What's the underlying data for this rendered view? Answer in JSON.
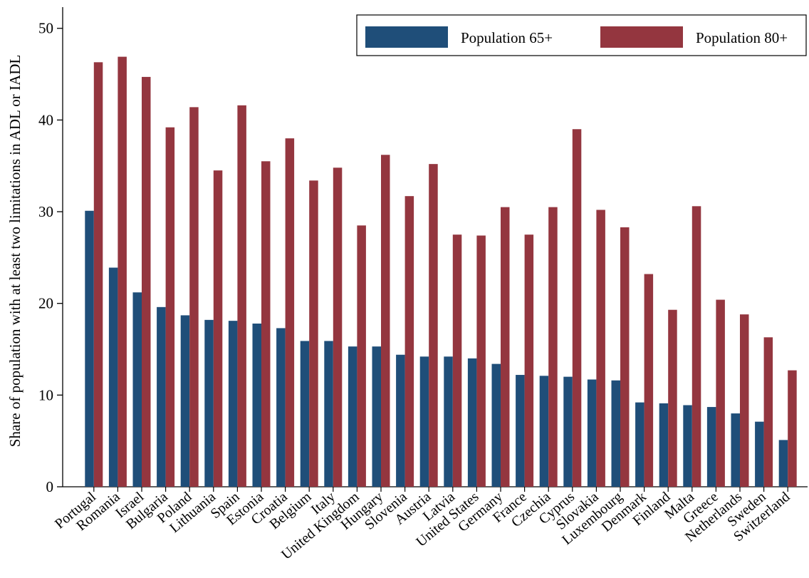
{
  "chart_data": {
    "type": "bar",
    "title": "",
    "xlabel": "",
    "ylabel": "Share of population with at least two limitations in ADL or IADL",
    "ylim": [
      0,
      52
    ],
    "yticks": [
      0,
      10,
      20,
      30,
      40,
      50
    ],
    "grid": false,
    "legend_position": "top-right",
    "categories": [
      "Portugal",
      "Romania",
      "Israel",
      "Bulgaria",
      "Poland",
      "Lithuania",
      "Spain",
      "Estonia",
      "Croatia",
      "Belgium",
      "Italy",
      "United Kingdom",
      "Hungary",
      "Slovenia",
      "Austria",
      "Latvia",
      "United States",
      "Germany",
      "France",
      "Czechia",
      "Cyprus",
      "Slovakia",
      "Luxembourg",
      "Denmark",
      "Finland",
      "Malta",
      "Greece",
      "Netherlands",
      "Sweden",
      "Switzerland"
    ],
    "series": [
      {
        "name": "Population 65+",
        "color": "#1f4e79",
        "values": [
          30.1,
          23.9,
          21.2,
          19.6,
          18.7,
          18.2,
          18.1,
          17.8,
          17.3,
          15.9,
          15.9,
          15.3,
          15.3,
          14.4,
          14.2,
          14.2,
          14.0,
          13.4,
          12.2,
          12.1,
          12.0,
          11.7,
          11.6,
          9.2,
          9.1,
          8.9,
          8.7,
          8.0,
          7.1,
          5.1
        ]
      },
      {
        "name": "Population 80+",
        "color": "#94363f",
        "values": [
          46.3,
          46.9,
          44.7,
          39.2,
          41.4,
          34.5,
          41.6,
          35.5,
          38.0,
          33.4,
          34.8,
          28.5,
          36.2,
          31.7,
          35.2,
          27.5,
          27.4,
          30.5,
          27.5,
          30.5,
          39.0,
          30.2,
          28.3,
          23.2,
          19.3,
          30.6,
          20.4,
          18.8,
          16.3,
          12.7
        ]
      }
    ]
  }
}
